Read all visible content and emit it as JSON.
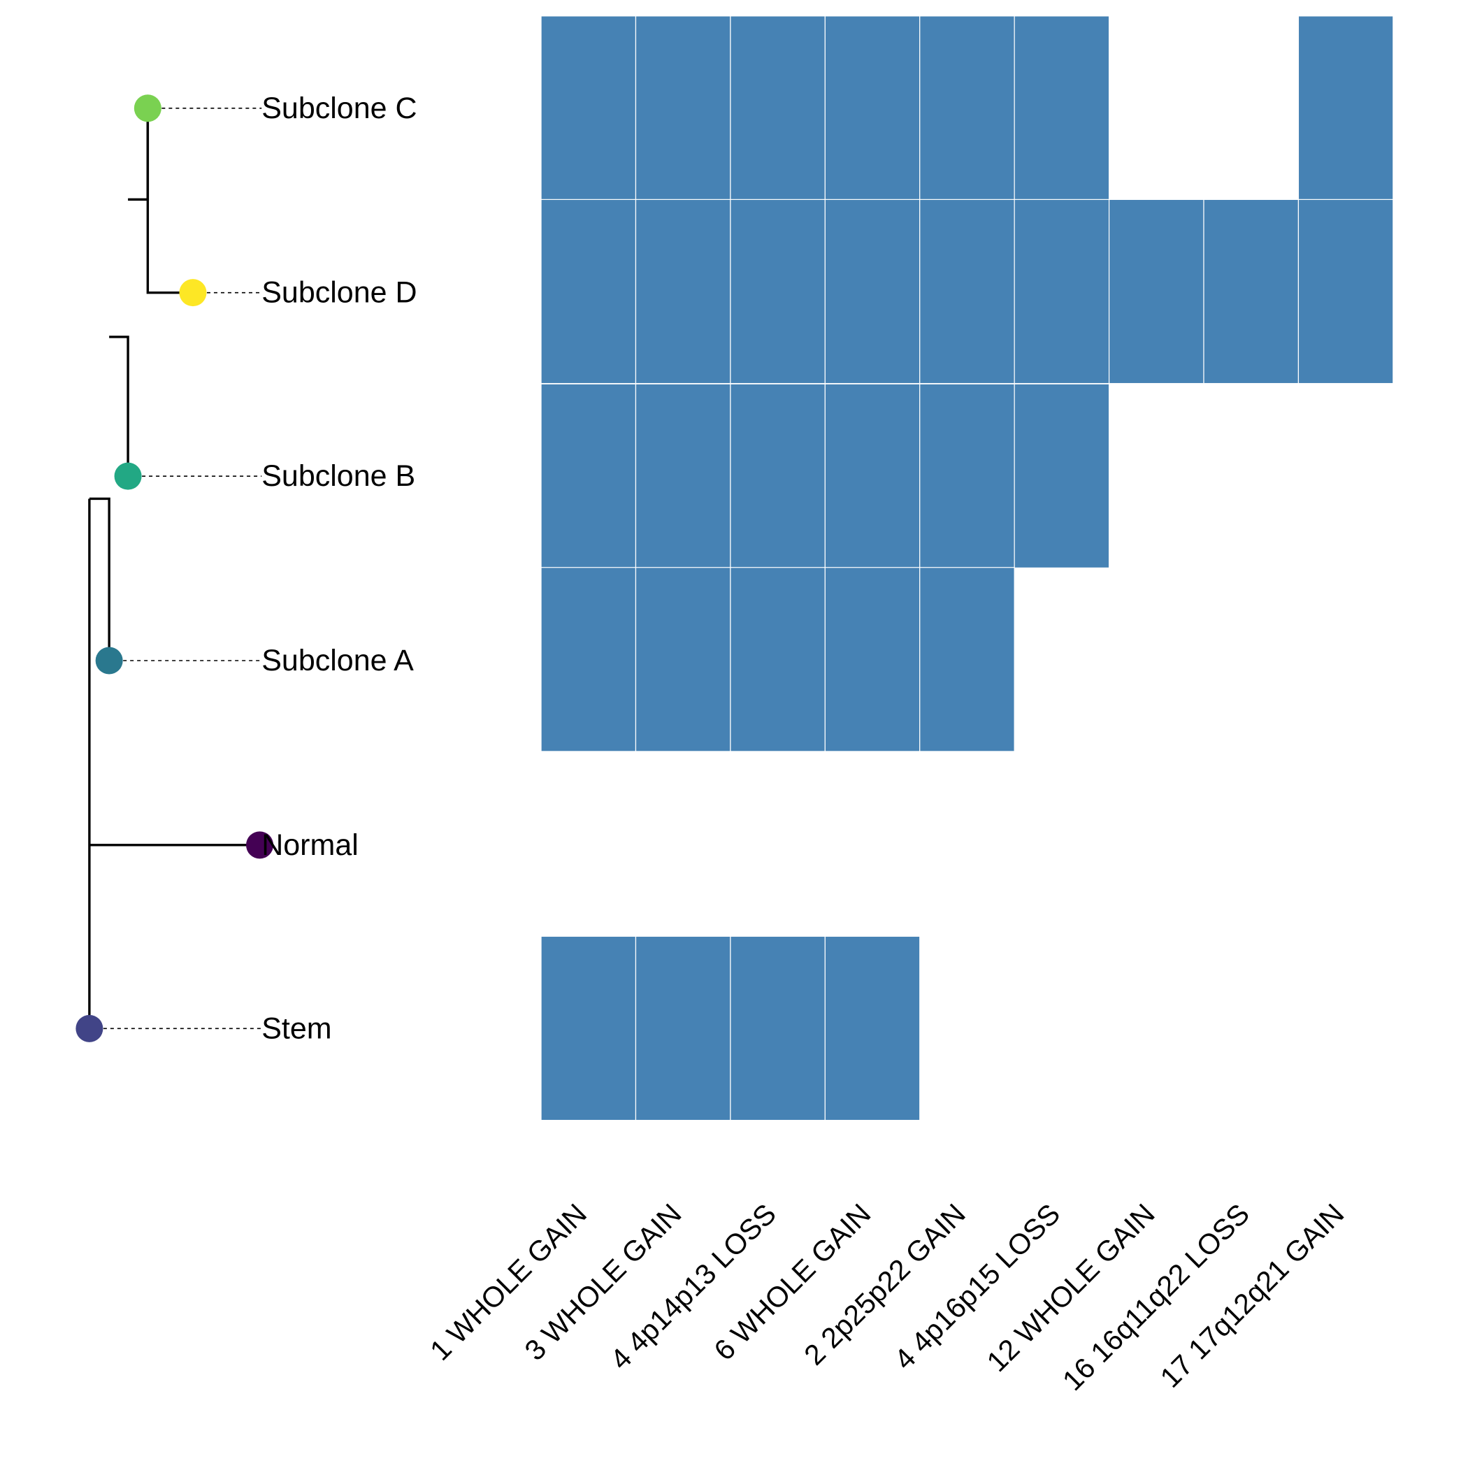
{
  "chart_data": {
    "type": "heatmap",
    "title": "",
    "xlabel": "",
    "ylabel": "",
    "columns": [
      "1 WHOLE GAIN",
      "3 WHOLE GAIN",
      "4 4p14p13 LOSS",
      "6 WHOLE GAIN",
      "2 2p25p22 GAIN",
      "4 4p16p15 LOSS",
      "12 WHOLE GAIN",
      "16 16q11q22 LOSS",
      "17 17q12q21 GAIN"
    ],
    "rows": [
      "Subclone C",
      "Subclone D",
      "Subclone B",
      "Subclone A",
      "Normal",
      "Stem"
    ],
    "node_colors": {
      "Subclone C": "#7ad151",
      "Subclone D": "#fde725",
      "Subclone B": "#22a884",
      "Subclone A": "#2a788e",
      "Normal": "#440154",
      "Stem": "#414487"
    },
    "matrix": [
      [
        1,
        1,
        1,
        1,
        1,
        1,
        0,
        0,
        1
      ],
      [
        1,
        1,
        1,
        1,
        1,
        1,
        1,
        1,
        1
      ],
      [
        1,
        1,
        1,
        1,
        1,
        1,
        0,
        0,
        0
      ],
      [
        1,
        1,
        1,
        1,
        1,
        0,
        0,
        0,
        0
      ],
      [
        0,
        0,
        0,
        0,
        0,
        0,
        0,
        0,
        0
      ],
      [
        1,
        1,
        1,
        1,
        0,
        0,
        0,
        0,
        0
      ]
    ],
    "fill_color": "#4682b4",
    "tree": {
      "edges": [
        [
          "Stem",
          "Normal"
        ],
        [
          "Stem",
          "Subclone A"
        ],
        [
          "Subclone A",
          "Subclone B"
        ],
        [
          "Subclone B",
          "Subclone C"
        ],
        [
          "Subclone C",
          "Subclone D"
        ]
      ]
    },
    "legend": "none",
    "grid": false
  }
}
